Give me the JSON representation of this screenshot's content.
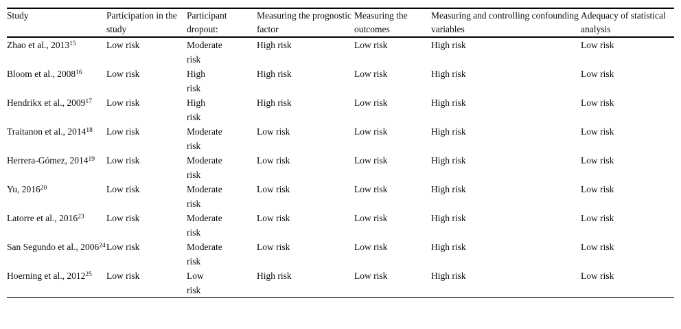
{
  "table": {
    "columns": [
      {
        "label": "Study"
      },
      {
        "label": "Participation in the study"
      },
      {
        "label": "Participant dropout:"
      },
      {
        "label": "Measuring the prognostic factor"
      },
      {
        "label": "Measuring the outcomes"
      },
      {
        "label": "Measuring and controlling confounding variables"
      },
      {
        "label": "Adequacy of statistical analysis"
      }
    ],
    "rows": [
      {
        "study": "Zhao et al., 2013",
        "ref": "15",
        "values": [
          "Low risk",
          "Moderate risk",
          "High risk",
          "Low risk",
          "High risk",
          "Low risk"
        ]
      },
      {
        "study": "Bloom et al., 2008",
        "ref": "16",
        "values": [
          "Low risk",
          "High risk",
          "High risk",
          "Low risk",
          "High risk",
          "Low risk"
        ]
      },
      {
        "study": "Hendrikx et al., 2009",
        "ref": "17",
        "values": [
          "Low risk",
          "High risk",
          "High risk",
          "Low risk",
          "High risk",
          "Low risk"
        ]
      },
      {
        "study": "Traitanon et al., 2014",
        "ref": "18",
        "values": [
          "Low risk",
          "Moderate risk",
          "Low risk",
          "Low risk",
          "High risk",
          "Low risk"
        ]
      },
      {
        "study": "Herrera-Gómez, 2014",
        "ref": "19",
        "values": [
          "Low risk",
          "Moderate risk",
          "Low risk",
          "Low risk",
          "High risk",
          "Low risk"
        ]
      },
      {
        "study": "Yu, 2016",
        "ref": "20",
        "values": [
          "Low risk",
          "Moderate risk",
          "Low risk",
          "Low risk",
          "High risk",
          "Low risk"
        ]
      },
      {
        "study": "Latorre et al., 2016",
        "ref": "23",
        "values": [
          "Low risk",
          "Moderate risk",
          "Low risk",
          "Low risk",
          "High risk",
          "Low risk"
        ]
      },
      {
        "study": "San Segundo et al., 2006",
        "ref": "24",
        "values": [
          "Low risk",
          "Moderate risk",
          "Low risk",
          "Low risk",
          "High risk",
          "Low risk"
        ]
      },
      {
        "study": "Hoerning et al., 2012",
        "ref": "25",
        "values": [
          "Low risk",
          "Low risk",
          "High risk",
          "Low risk",
          "High risk",
          "Low risk"
        ]
      }
    ]
  },
  "colors": {
    "text": "#0a0a0a",
    "rule": "#000000",
    "background": "#ffffff"
  }
}
